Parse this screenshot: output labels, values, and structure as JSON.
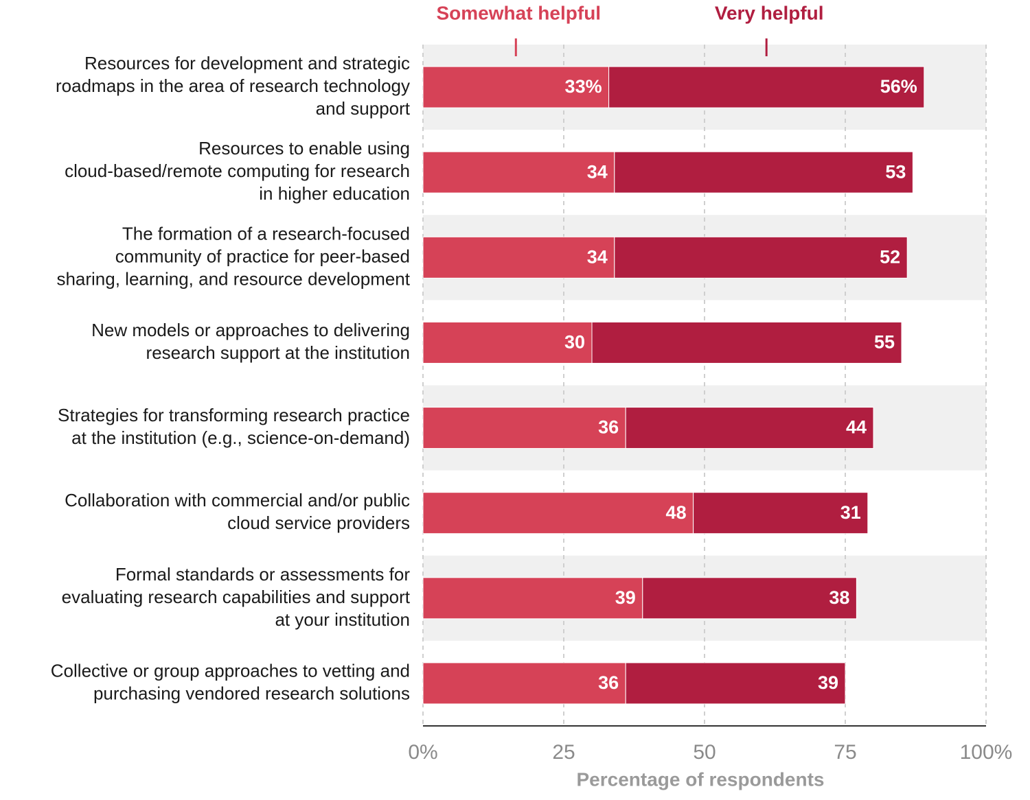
{
  "chart_data": {
    "type": "stacked-bar-horizontal",
    "categories": [
      [
        "Resources for development and strategic",
        "roadmaps in the area of research technology",
        "and support"
      ],
      [
        "Resources to enable using",
        "cloud-based/remote computing for research",
        "in higher education"
      ],
      [
        "The formation of a research-focused",
        "community of practice for peer-based",
        "sharing, learning, and resource development"
      ],
      [
        "New models or approaches to delivering",
        "research support at the institution"
      ],
      [
        "Strategies for transforming research practice",
        "at the institution (e.g., science-on-demand)"
      ],
      [
        "Collaboration with commercial and/or public",
        "cloud service providers"
      ],
      [
        "Formal standards or assessments for",
        "evaluating research capabilities and support",
        "at your institution"
      ],
      [
        "Collective or group approaches to vetting and",
        "purchasing vendored research solutions"
      ]
    ],
    "series": [
      {
        "name": "Somewhat helpful",
        "color": "#d64257",
        "values": [
          33,
          34,
          34,
          30,
          36,
          48,
          39,
          36
        ],
        "value_labels": [
          "33%",
          "34",
          "34",
          "30",
          "36",
          "48",
          "39",
          "36"
        ]
      },
      {
        "name": "Very helpful",
        "color": "#b01e40",
        "values": [
          56,
          53,
          52,
          55,
          44,
          31,
          38,
          39
        ],
        "value_labels": [
          "56%",
          "53",
          "52",
          "55",
          "44",
          "31",
          "38",
          "39"
        ]
      }
    ],
    "xlim": [
      0,
      100
    ],
    "xticks": [
      {
        "value": 0,
        "label": "0%"
      },
      25,
      50,
      75,
      {
        "value": 100,
        "label": "100%"
      }
    ],
    "xlabel": "Percentage of respondents",
    "grid": true
  }
}
